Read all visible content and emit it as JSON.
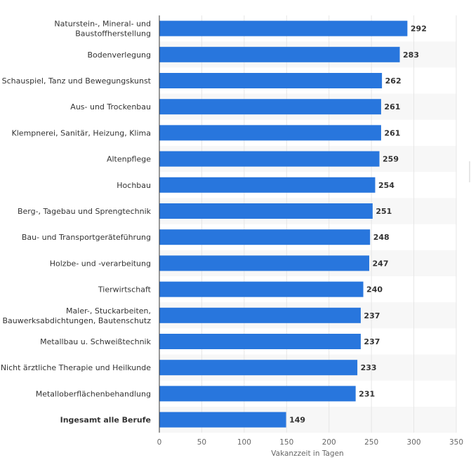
{
  "chart_data": {
    "type": "bar",
    "orientation": "horizontal",
    "categories": [
      "Naturstein-, Mineral- und Baustoffherstellung",
      "Bodenverlegung",
      "Schauspiel, Tanz und Bewegungskunst",
      "Aus- und Trockenbau",
      "Klempnerei, Sanitär, Heizung, Klima",
      "Altenpflege",
      "Hochbau",
      "Berg-, Tagebau und Sprengtechnik",
      "Bau- und Transportgeräteführung",
      "Holzbe- und -verarbeitung",
      "Tierwirtschaft",
      "Maler-, Stuckarbeiten, Bauwerksabdichtungen, Bautenschutz",
      "Metallbau u. Schweißtechnik",
      "Nicht ärztliche Therapie und Heilkunde",
      "Metalloberflächenbehandlung",
      "Ingesamt alle Berufe"
    ],
    "category_lines": [
      [
        "Naturstein-, Mineral- und",
        "Baustoffherstellung"
      ],
      [
        "Bodenverlegung"
      ],
      [
        "Schauspiel, Tanz und Bewegungskunst"
      ],
      [
        "Aus- und Trockenbau"
      ],
      [
        "Klempnerei, Sanitär, Heizung, Klima"
      ],
      [
        "Altenpflege"
      ],
      [
        "Hochbau"
      ],
      [
        "Berg-, Tagebau und Sprengtechnik"
      ],
      [
        "Bau- und Transportgeräteführung"
      ],
      [
        "Holzbe- und -verarbeitung"
      ],
      [
        "Tierwirtschaft"
      ],
      [
        "Maler-, Stuckarbeiten,",
        "Bauwerksabdichtungen, Bautenschutz"
      ],
      [
        "Metallbau u. Schweißtechnik"
      ],
      [
        "Nicht ärztliche Therapie und Heilkunde"
      ],
      [
        "Metalloberflächenbehandlung"
      ],
      [
        "Ingesamt alle Berufe"
      ]
    ],
    "bold_categories": [
      "Ingesamt alle Berufe"
    ],
    "values": [
      292,
      283,
      262,
      261,
      261,
      259,
      254,
      251,
      248,
      247,
      240,
      237,
      237,
      233,
      231,
      149
    ],
    "xlabel": "Vakanzzeit in Tagen",
    "ylabel": "",
    "xlim": [
      0,
      350
    ],
    "xticks": [
      0,
      50,
      100,
      150,
      200,
      250,
      300,
      350
    ],
    "grid": true,
    "bar_color": "#2876dd",
    "alt_row_color": "#f7f7f7",
    "data_labels": true
  }
}
